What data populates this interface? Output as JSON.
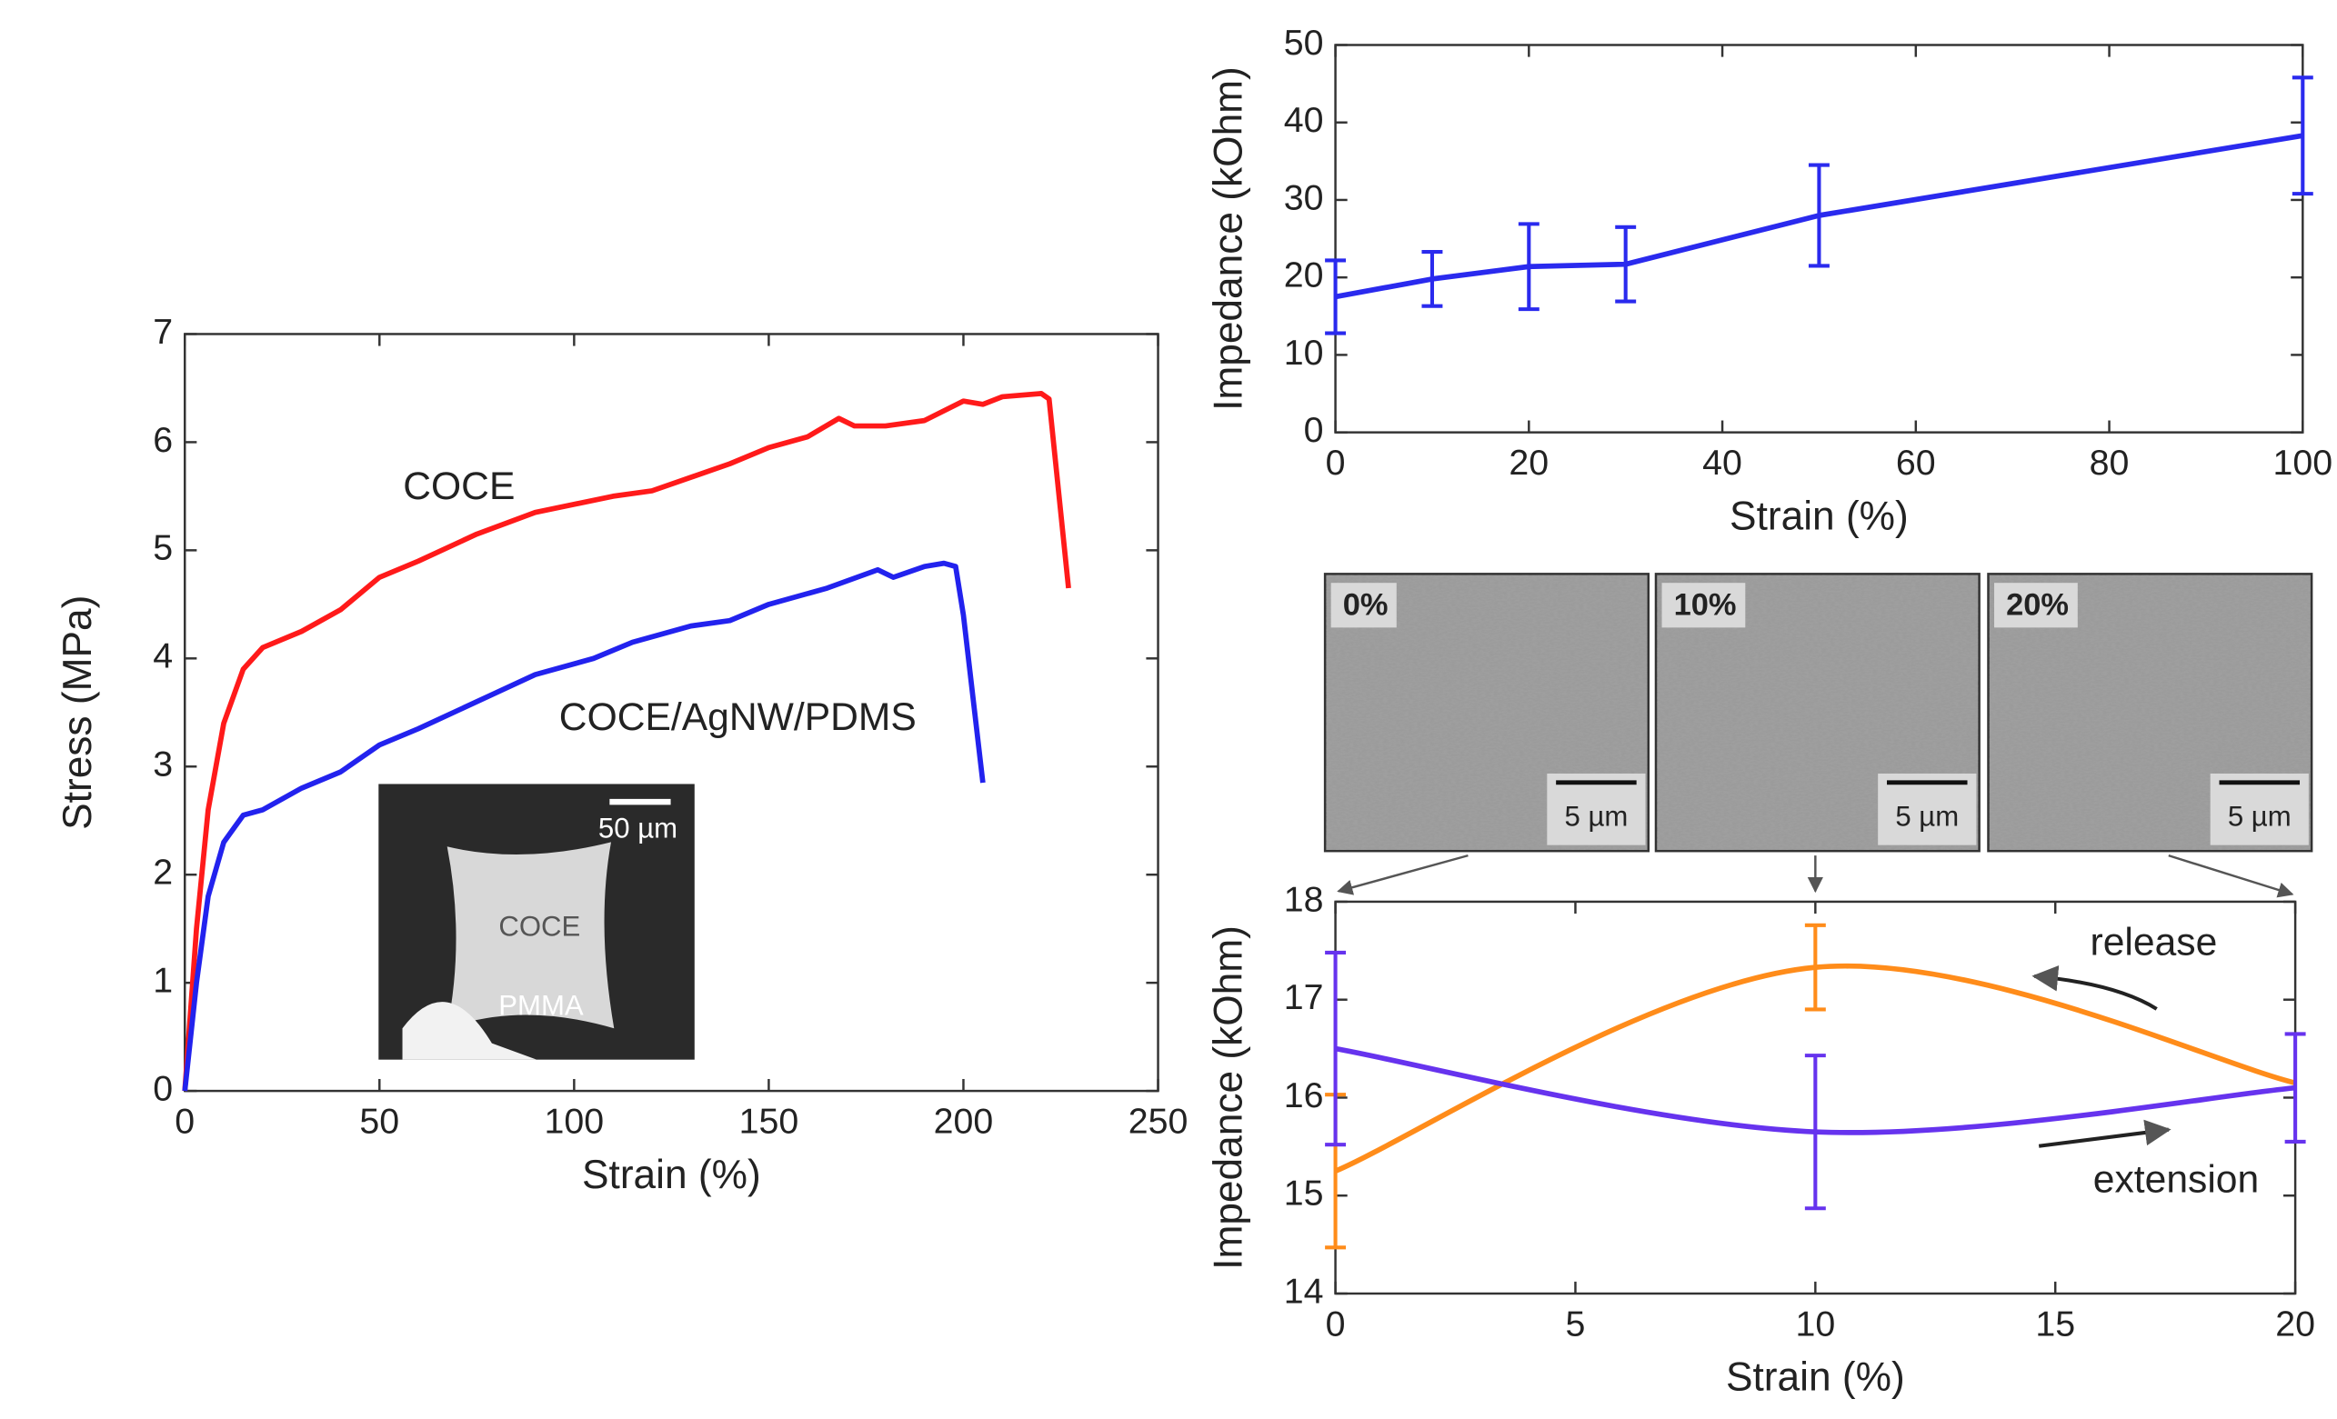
{
  "chart_data": [
    {
      "type": "line",
      "xlabel": "Strain (%)",
      "ylabel": "Stress (MPa)",
      "xlim": [
        0,
        250
      ],
      "ylim": [
        0,
        7
      ],
      "xticks": [
        0,
        50,
        100,
        150,
        200,
        250
      ],
      "yticks": [
        0,
        1,
        2,
        3,
        4,
        5,
        6,
        7
      ],
      "series": [
        {
          "name": "COCE",
          "color": "#ff1a1a",
          "x": [
            0,
            3,
            6,
            10,
            15,
            20,
            30,
            40,
            50,
            60,
            75,
            90,
            110,
            120,
            140,
            150,
            160,
            168,
            172,
            180,
            190,
            200,
            205,
            210,
            220,
            222,
            227
          ],
          "values": [
            0,
            1.5,
            2.6,
            3.4,
            3.9,
            4.1,
            4.25,
            4.45,
            4.75,
            4.9,
            5.15,
            5.35,
            5.5,
            5.55,
            5.8,
            5.95,
            6.05,
            6.22,
            6.15,
            6.15,
            6.2,
            6.38,
            6.35,
            6.42,
            6.45,
            6.4,
            4.65
          ]
        },
        {
          "name": "COCE/AgNW/PDMS",
          "color": "#2222ee",
          "x": [
            0,
            3,
            6,
            10,
            15,
            20,
            30,
            40,
            50,
            60,
            75,
            90,
            105,
            115,
            130,
            140,
            150,
            165,
            178,
            182,
            190,
            195,
            198,
            200,
            205
          ],
          "values": [
            0,
            1,
            1.8,
            2.3,
            2.55,
            2.6,
            2.8,
            2.95,
            3.2,
            3.35,
            3.6,
            3.85,
            4,
            4.15,
            4.3,
            4.35,
            4.5,
            4.65,
            4.82,
            4.75,
            4.85,
            4.88,
            4.85,
            4.4,
            2.85
          ]
        }
      ],
      "inset_labels": [
        "50 µm",
        "COCE",
        "PMMA"
      ]
    },
    {
      "type": "line",
      "xlabel": "Strain (%)",
      "ylabel": "Impedance (kOhm)",
      "xlim": [
        0,
        100
      ],
      "ylim": [
        0,
        50
      ],
      "xticks": [
        0,
        20,
        40,
        60,
        80,
        100
      ],
      "yticks": [
        0,
        10,
        20,
        30,
        40,
        50
      ],
      "x": [
        0,
        10,
        20,
        30,
        50,
        100
      ],
      "series": [
        {
          "color": "#2a2aee",
          "values": [
            17.5,
            19.8,
            21.4,
            21.7,
            28,
            38.3
          ],
          "errors": [
            4.7,
            3.5,
            5.5,
            4.8,
            6.5,
            7.5
          ]
        }
      ]
    },
    {
      "type": "line",
      "smooth": true,
      "xlabel": "Strain (%)",
      "ylabel": "Impedance (kOhm)",
      "xlim": [
        0,
        20
      ],
      "ylim": [
        14,
        18
      ],
      "xticks": [
        0,
        5,
        10,
        15,
        20
      ],
      "yticks": [
        14,
        15,
        16,
        17,
        18
      ],
      "x": [
        0,
        10,
        20
      ],
      "series": [
        {
          "name": "release",
          "color": "#ff8c1a",
          "values": [
            15.25,
            17.33,
            16.15
          ],
          "errors": [
            0.78,
            0.43,
            null
          ]
        },
        {
          "name": "extension",
          "color": "#6633ee",
          "values": [
            16.5,
            15.65,
            16.1
          ],
          "errors": [
            0.98,
            0.78,
            0.55
          ]
        }
      ]
    }
  ],
  "micrographs": [
    {
      "label": "0%",
      "scale": "5 µm"
    },
    {
      "label": "10%",
      "scale": "5 µm"
    },
    {
      "label": "20%",
      "scale": "5 µm"
    }
  ]
}
